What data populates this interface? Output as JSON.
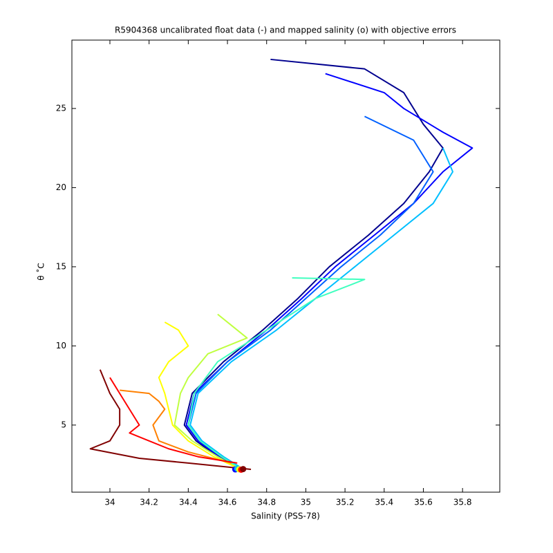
{
  "chart_data": {
    "type": "line",
    "title": "R5904368 uncalibrated float data (-) and mapped salinity (o) with objective errors",
    "x_label": "Salinity (PSS-78)",
    "y_label": "θ ˚C",
    "xlim": [
      33.806,
      35.99
    ],
    "ylim": [
      0.76,
      29.32
    ],
    "xticks": [
      34,
      34.2,
      34.4,
      34.6,
      34.8,
      35,
      35.2,
      35.4,
      35.6,
      35.8
    ],
    "yticks": [
      5,
      10,
      15,
      20,
      25
    ],
    "series": [
      {
        "color": "#00008f",
        "x": [
          34.82,
          35.3,
          35.5,
          35.6,
          35.7,
          35.63,
          35.5,
          35.32,
          35.12,
          34.96,
          34.78,
          34.58,
          34.42,
          34.38,
          34.44,
          34.55,
          34.65
        ],
        "values": [
          28.1,
          27.5,
          26,
          24,
          22.5,
          21,
          19,
          17,
          15,
          13,
          11,
          9,
          7,
          5,
          4,
          3,
          2.3
        ]
      },
      {
        "color": "#0000ff",
        "x": [
          35.1,
          35.4,
          35.5,
          35.7,
          35.85,
          35.7,
          35.55,
          35.35,
          35.15,
          34.98,
          34.8,
          34.6,
          34.43,
          34.39,
          34.45,
          34.56,
          34.66
        ],
        "values": [
          27.2,
          26,
          25,
          23.5,
          22.5,
          21,
          19,
          17,
          15,
          13,
          11,
          9,
          7,
          5,
          4,
          3,
          2.3
        ]
      },
      {
        "color": "#0060ff",
        "x": [
          35.3,
          35.55,
          35.65,
          35.55,
          35.38,
          35.18,
          35.0,
          34.82,
          34.6,
          34.44,
          34.4,
          34.46,
          34.57,
          34.66
        ],
        "values": [
          24.5,
          23,
          21,
          19,
          17,
          15,
          13,
          11,
          9,
          7,
          5,
          4,
          3,
          2.3
        ]
      },
      {
        "color": "#00bfff",
        "x": [
          35.7,
          35.75,
          35.65,
          35.45,
          35.25,
          35.05,
          34.85,
          34.62,
          34.45,
          34.41,
          34.47,
          34.58,
          34.67
        ],
        "values": [
          22.5,
          21,
          19,
          17,
          15,
          13,
          11,
          9,
          7,
          5,
          4,
          3,
          2.3
        ]
      },
      {
        "color": "#40ffbf",
        "x": [
          34.93,
          35.3,
          35.05,
          34.8,
          34.55,
          34.43,
          34.4,
          34.46,
          34.57,
          34.66
        ],
        "values": [
          14.3,
          14.2,
          13,
          11,
          9,
          7,
          5,
          4,
          3,
          2.3
        ]
      },
      {
        "color": "#bfff40",
        "x": [
          34.55,
          34.6,
          34.7,
          34.5,
          34.4,
          34.36,
          34.33,
          34.42,
          34.55,
          34.65
        ],
        "values": [
          12,
          11.5,
          10.5,
          9.5,
          8,
          7,
          5,
          4,
          3,
          2.3
        ]
      },
      {
        "color": "#ffff00",
        "x": [
          34.28,
          34.35,
          34.4,
          34.3,
          34.25,
          34.28,
          34.3,
          34.32,
          34.4,
          34.53,
          34.65
        ],
        "values": [
          11.5,
          11,
          10,
          9,
          8,
          7,
          6,
          5,
          4,
          3,
          2.3
        ]
      },
      {
        "color": "#ff8000",
        "x": [
          34.05,
          34.2,
          34.25,
          34.28,
          34.22,
          34.25,
          34.4,
          34.62
        ],
        "values": [
          7.2,
          7,
          6.5,
          6,
          5,
          4,
          3.3,
          2.6
        ]
      },
      {
        "color": "#ff0000",
        "x": [
          34.0,
          34.05,
          34.1,
          34.15,
          34.1,
          34.2,
          34.3,
          34.45,
          34.65
        ],
        "values": [
          8,
          7,
          6,
          5,
          4.5,
          4,
          3.5,
          3,
          2.6
        ]
      },
      {
        "color": "#800000",
        "x": [
          33.95,
          34.0,
          34.05,
          34.05,
          34.0,
          33.9,
          34.15,
          34.4,
          34.72
        ],
        "values": [
          8.5,
          7,
          6,
          5,
          4,
          3.5,
          2.9,
          2.6,
          2.2
        ]
      }
    ],
    "mapped": {
      "x": [
        34.64,
        34.65,
        34.66,
        34.67,
        34.68
      ],
      "values": [
        2.2,
        2.25,
        2.2,
        2.18,
        2.22
      ],
      "colors": [
        "#0000ff",
        "#00bfff",
        "#ffff00",
        "#ff0000",
        "#800000"
      ]
    }
  }
}
